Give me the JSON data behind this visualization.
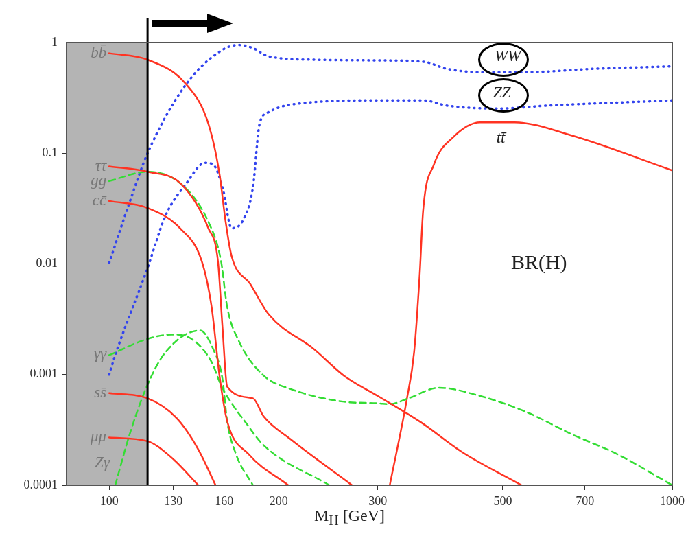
{
  "chart_data": {
    "type": "line",
    "xlabel": "M$_{H}$ [GeV]",
    "log": "xy",
    "xlim": [
      84,
      1000
    ],
    "ylim": [
      0.0001,
      1
    ],
    "xticks": [
      100,
      130,
      160,
      200,
      300,
      500,
      700,
      1000
    ],
    "yticks": [
      1,
      0.1,
      0.01,
      0.001,
      0.0001
    ],
    "bands": [
      {
        "axis": "x",
        "from": 84,
        "to": 117,
        "color": "#b4b4b4"
      }
    ],
    "ref_lines": [
      {
        "axis": "x",
        "value": 117,
        "color": "#000000"
      }
    ],
    "annotations": [
      "BR(H)"
    ],
    "series": [
      {
        "name": "bb̄",
        "color": "#ff3322",
        "line_style": "solid",
        "x": [
          100,
          117,
          137,
          150,
          157,
          161,
          165,
          178,
          192,
          231,
          261,
          300,
          358,
          423,
          540
        ],
        "values": [
          0.8,
          0.7,
          0.42,
          0.185,
          0.065,
          0.024,
          0.0117,
          0.0066,
          0.0035,
          0.0017,
          0.00098,
          0.00064,
          0.00037,
          0.0002,
          0.0001
        ]
      },
      {
        "name": "ττ",
        "color": "#ff3322",
        "line_style": "solid",
        "x": [
          100,
          117,
          134,
          150,
          156,
          159,
          162,
          180,
          188,
          210,
          270
        ],
        "values": [
          0.076,
          0.068,
          0.053,
          0.021,
          0.0106,
          0.0026,
          0.00078,
          0.00061,
          0.00042,
          0.00026,
          0.0001
        ]
      },
      {
        "name": "gg",
        "color": "#33dd33",
        "line_style": "dashed",
        "x": [
          100,
          117,
          134,
          150,
          158,
          162,
          170,
          188,
          210,
          260,
          300,
          315,
          340,
          385,
          456,
          550,
          662,
          800,
          1000
        ],
        "values": [
          0.056,
          0.068,
          0.053,
          0.024,
          0.0106,
          0.0041,
          0.002,
          0.00098,
          0.00074,
          0.00057,
          0.00055,
          0.00054,
          0.00061,
          0.00076,
          0.00064,
          0.00046,
          0.00029,
          0.00019,
          0.0001
        ]
      },
      {
        "name": "cc̄",
        "color": "#ff3322",
        "line_style": "solid",
        "x": [
          100,
          117,
          134,
          146,
          152,
          157,
          162,
          177,
          208
        ],
        "values": [
          0.037,
          0.032,
          0.0207,
          0.0106,
          0.0041,
          0.00098,
          0.00038,
          0.00019,
          0.0001
        ]
      },
      {
        "name": "γγ",
        "color": "#33dd33",
        "line_style": "dashed",
        "x": [
          100,
          117,
          129,
          140,
          152,
          158,
          165,
          174,
          188,
          246
        ],
        "values": [
          0.0015,
          0.0021,
          0.0023,
          0.0021,
          0.0013,
          0.0008,
          0.00055,
          0.00038,
          0.00023,
          0.0001
        ]
      },
      {
        "name": "ss̄",
        "color": "#ff3322",
        "line_style": "solid",
        "x": [
          100,
          117,
          132,
          144,
          154.5
        ],
        "values": [
          0.00068,
          0.00061,
          0.0004,
          0.00021,
          0.0001
        ]
      },
      {
        "name": "μμ",
        "color": "#ff3322",
        "line_style": "solid",
        "x": [
          100,
          117,
          129,
          144
        ],
        "values": [
          0.00027,
          0.00025,
          0.000178,
          0.0001
        ]
      },
      {
        "name": "Zγ",
        "color": "#33dd33",
        "line_style": "dashed",
        "x": [
          102.5,
          109,
          117,
          126,
          145,
          153,
          159,
          162,
          168,
          180
        ],
        "values": [
          0.0001,
          0.0003,
          0.00081,
          0.0016,
          0.0025,
          0.0017,
          0.0009,
          0.00038,
          0.00019,
          0.0001
        ]
      },
      {
        "name": "WW",
        "color": "#3344ee",
        "line_style": "dotted",
        "x": [
          100,
          108.5,
          117,
          137,
          159,
          170,
          180,
          192,
          231,
          300,
          362,
          397,
          456,
          550,
          729,
          1000
        ],
        "values": [
          0.0102,
          0.035,
          0.1,
          0.42,
          0.86,
          0.95,
          0.89,
          0.75,
          0.7,
          0.69,
          0.67,
          0.58,
          0.54,
          0.54,
          0.58,
          0.61
        ]
      },
      {
        "name": "ZZ",
        "color": "#3344ee",
        "line_style": "dotted",
        "x": [
          100,
          102.5,
          117,
          126,
          137,
          148,
          153,
          159,
          165,
          173,
          180,
          185,
          192,
          210,
          300,
          362,
          397,
          490,
          605,
          1000
        ],
        "values": [
          0.001,
          0.0015,
          0.0092,
          0.0275,
          0.053,
          0.082,
          0.079,
          0.049,
          0.021,
          0.025,
          0.049,
          0.185,
          0.235,
          0.275,
          0.3,
          0.3,
          0.27,
          0.253,
          0.27,
          0.3
        ]
      },
      {
        "name": "tt̄",
        "color": "#ff3322",
        "line_style": "solid",
        "x": [
          315,
          338,
          348,
          356,
          361,
          377,
          408,
          456,
          525,
          662,
          1000
        ],
        "values": [
          0.0001,
          0.00061,
          0.0016,
          0.008,
          0.03,
          0.078,
          0.139,
          0.19,
          0.19,
          0.145,
          0.07
        ]
      }
    ]
  }
}
